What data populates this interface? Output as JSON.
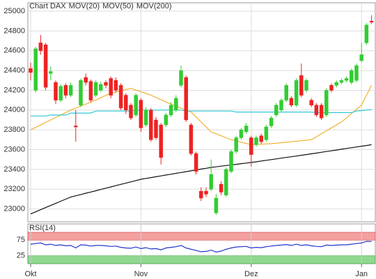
{
  "chart_data": [
    {
      "type": "candlestick",
      "categories": [
        "Okt",
        null,
        null,
        null,
        null,
        null,
        null,
        null,
        null,
        null,
        null,
        null,
        null,
        null,
        null,
        null,
        null,
        null,
        null,
        null,
        null,
        null,
        "Nov",
        null,
        null,
        null,
        null,
        null,
        null,
        null,
        null,
        null,
        null,
        null,
        null,
        null,
        null,
        null,
        null,
        null,
        null,
        null,
        null,
        null,
        "Dez",
        null,
        null,
        null,
        null,
        null,
        null,
        null,
        null,
        null,
        null,
        null,
        null,
        null,
        null,
        null,
        null,
        null,
        null,
        null,
        null,
        null,
        "Jan",
        null,
        null
      ],
      "ohlc": {
        "name": "Chart DAX",
        "color": "#888888",
        "up_color": "#33cc33",
        "down_color": "#ee2222",
        "open": [
          24420,
          24200,
          24680,
          24660,
          24370,
          24280,
          24100,
          24250,
          24150,
          23840,
          24050,
          24330,
          24290,
          24150,
          24200,
          24280,
          24320,
          24300,
          24250,
          24150,
          24050,
          23950,
          24100,
          23850,
          24000,
          23900,
          23850,
          23850,
          23950,
          24000,
          24250,
          24330,
          23850,
          23560,
          23180,
          23180,
          23200,
          22960,
          23250,
          23140,
          23380,
          23580,
          23720,
          23780,
          23720,
          23650,
          23740,
          23700,
          23840,
          23950,
          24000,
          24100,
          24120,
          24050,
          24350,
          24200,
          24100,
          24050,
          24050,
          23950,
          24250,
          24250,
          24280,
          24300,
          24280,
          24300,
          24500,
          24680,
          24900
        ],
        "high": [
          24480,
          24640,
          24760,
          24680,
          24440,
          24300,
          24260,
          24270,
          24280,
          24000,
          24320,
          24370,
          24310,
          24300,
          24290,
          24300,
          24340,
          24330,
          24270,
          24170,
          24070,
          24170,
          24120,
          24030,
          24020,
          23930,
          23870,
          23970,
          24080,
          24150,
          24450,
          24350,
          23870,
          23580,
          23220,
          23220,
          23500,
          23150,
          23280,
          23420,
          23600,
          23740,
          23820,
          23870,
          23740,
          23740,
          23760,
          23850,
          23940,
          24070,
          24120,
          24270,
          24140,
          24320,
          24470,
          24320,
          24120,
          24070,
          24070,
          24220,
          24270,
          24300,
          24320,
          24340,
          24420,
          24470,
          24680,
          24880,
          24960
        ],
        "low": [
          24300,
          24180,
          24560,
          24200,
          24300,
          24060,
          24080,
          24120,
          24130,
          23680,
          24030,
          24250,
          24080,
          24130,
          24180,
          24220,
          24120,
          24180,
          24000,
          23960,
          23900,
          23930,
          23780,
          23830,
          23680,
          23700,
          23450,
          23830,
          23930,
          23980,
          24230,
          23880,
          23540,
          23350,
          23080,
          23120,
          23180,
          22940,
          23140,
          23120,
          23360,
          23560,
          23700,
          23760,
          23430,
          23630,
          23660,
          23680,
          23820,
          23930,
          23980,
          24080,
          24030,
          24030,
          24130,
          24180,
          24030,
          23930,
          23900,
          23930,
          24180,
          24230,
          24260,
          24280,
          24260,
          24280,
          24480,
          24660,
          24870
        ],
        "close": [
          24380,
          24620,
          24600,
          24230,
          24390,
          24100,
          24240,
          24150,
          24250,
          23830,
          24300,
          24280,
          24100,
          24280,
          24260,
          24250,
          24150,
          24200,
          24020,
          24000,
          23920,
          24150,
          23820,
          24000,
          23700,
          23720,
          23520,
          23950,
          24050,
          24120,
          24400,
          23900,
          23560,
          23380,
          23110,
          23150,
          23350,
          23110,
          23170,
          23400,
          23580,
          23720,
          23800,
          23840,
          23550,
          23720,
          23680,
          23830,
          23920,
          24050,
          24100,
          24250,
          24050,
          24300,
          24150,
          24300,
          24050,
          23950,
          23920,
          24200,
          24200,
          24280,
          24300,
          24320,
          24400,
          24450,
          24560,
          24860,
          24890
        ]
      },
      "series": [
        {
          "name": "MOV(20)",
          "color": "#f0b030",
          "values": [
            23800,
            23825,
            23850,
            23875,
            23900,
            23925,
            23950,
            23975,
            24000,
            24020,
            24040,
            24060,
            24080,
            24102,
            24125,
            24148,
            24170,
            24182,
            24195,
            24208,
            24220,
            24202,
            24185,
            24168,
            24150,
            24128,
            24105,
            24082,
            24060,
            24040,
            24020,
            24000,
            23980,
            23930,
            23880,
            23830,
            23780,
            23760,
            23740,
            23720,
            23700,
            23688,
            23675,
            23662,
            23650,
            23652,
            23655,
            23658,
            23660,
            23665,
            23670,
            23675,
            23680,
            23685,
            23690,
            23695,
            23700,
            23730,
            23760,
            23790,
            23820,
            23850,
            23880,
            23920,
            23965,
            24008,
            24050,
            24150,
            24250
          ]
        },
        {
          "name": "MOV(50)",
          "color": "#30c8d8",
          "values": [
            23940,
            23940,
            23940,
            23940,
            23950,
            23950,
            23950,
            23950,
            23970,
            23970,
            23970,
            23970,
            23970,
            23990,
            23990,
            23990,
            23990,
            23990,
            23990,
            23990,
            23990,
            24000,
            24000,
            24000,
            24000,
            24000,
            24000,
            24000,
            24000,
            24000,
            24000,
            23990,
            23990,
            23990,
            23990,
            23990,
            23990,
            23990,
            23990,
            23990,
            23990,
            23980,
            23980,
            23980,
            23980,
            23980,
            23980,
            23980,
            23980,
            23980,
            23980,
            23980,
            23980,
            23980,
            23980,
            23980,
            23980,
            23975,
            23975,
            23975,
            23975,
            23975,
            23975,
            23975,
            23975,
            23990,
            23995,
            24000,
            24005
          ]
        },
        {
          "name": "MOV(200)",
          "color": "#111111",
          "values": [
            22950,
            22971,
            22993,
            23014,
            23035,
            23056,
            23078,
            23099,
            23120,
            23133,
            23146,
            23159,
            23171,
            23184,
            23197,
            23210,
            23223,
            23236,
            23249,
            23261,
            23274,
            23287,
            23300,
            23309,
            23317,
            23326,
            23334,
            23343,
            23351,
            23360,
            23369,
            23377,
            23386,
            23394,
            23403,
            23411,
            23420,
            23426,
            23433,
            23439,
            23445,
            23451,
            23458,
            23464,
            23470,
            23477,
            23485,
            23492,
            23499,
            23506,
            23514,
            23521,
            23528,
            23535,
            23543,
            23550,
            23558,
            23565,
            23573,
            23581,
            23588,
            23596,
            23604,
            23612,
            23619,
            23627,
            23635,
            23642,
            23650
          ]
        }
      ],
      "ylim": [
        22870,
        25085
      ],
      "yticks": [
        23000,
        23200,
        23400,
        23600,
        23800,
        24000,
        24200,
        24400,
        24600,
        24800,
        25000
      ],
      "grid": true
    },
    {
      "type": "line",
      "title": "RSI(14)",
      "series": [
        {
          "name": "RSI(14)",
          "color": "#2233cc",
          "values": [
            62,
            64,
            66,
            60,
            62,
            58,
            60,
            57,
            58,
            50,
            60,
            59,
            56,
            58,
            58,
            57,
            55,
            56,
            52,
            50,
            49,
            53,
            48,
            51,
            47,
            48,
            44,
            50,
            52,
            54,
            58,
            50,
            46,
            42,
            38,
            39,
            43,
            37,
            40,
            46,
            50,
            53,
            54,
            55,
            50,
            52,
            51,
            54,
            56,
            58,
            59,
            61,
            58,
            62,
            58,
            60,
            57,
            55,
            54,
            59,
            58,
            59,
            60,
            60,
            62,
            64,
            66,
            71,
            71
          ]
        }
      ],
      "ylim": [
        0,
        100
      ],
      "yticks": [
        25,
        75
      ],
      "upper_band_color": "#f4a0a0",
      "lower_band_color": "#90d890"
    }
  ]
}
